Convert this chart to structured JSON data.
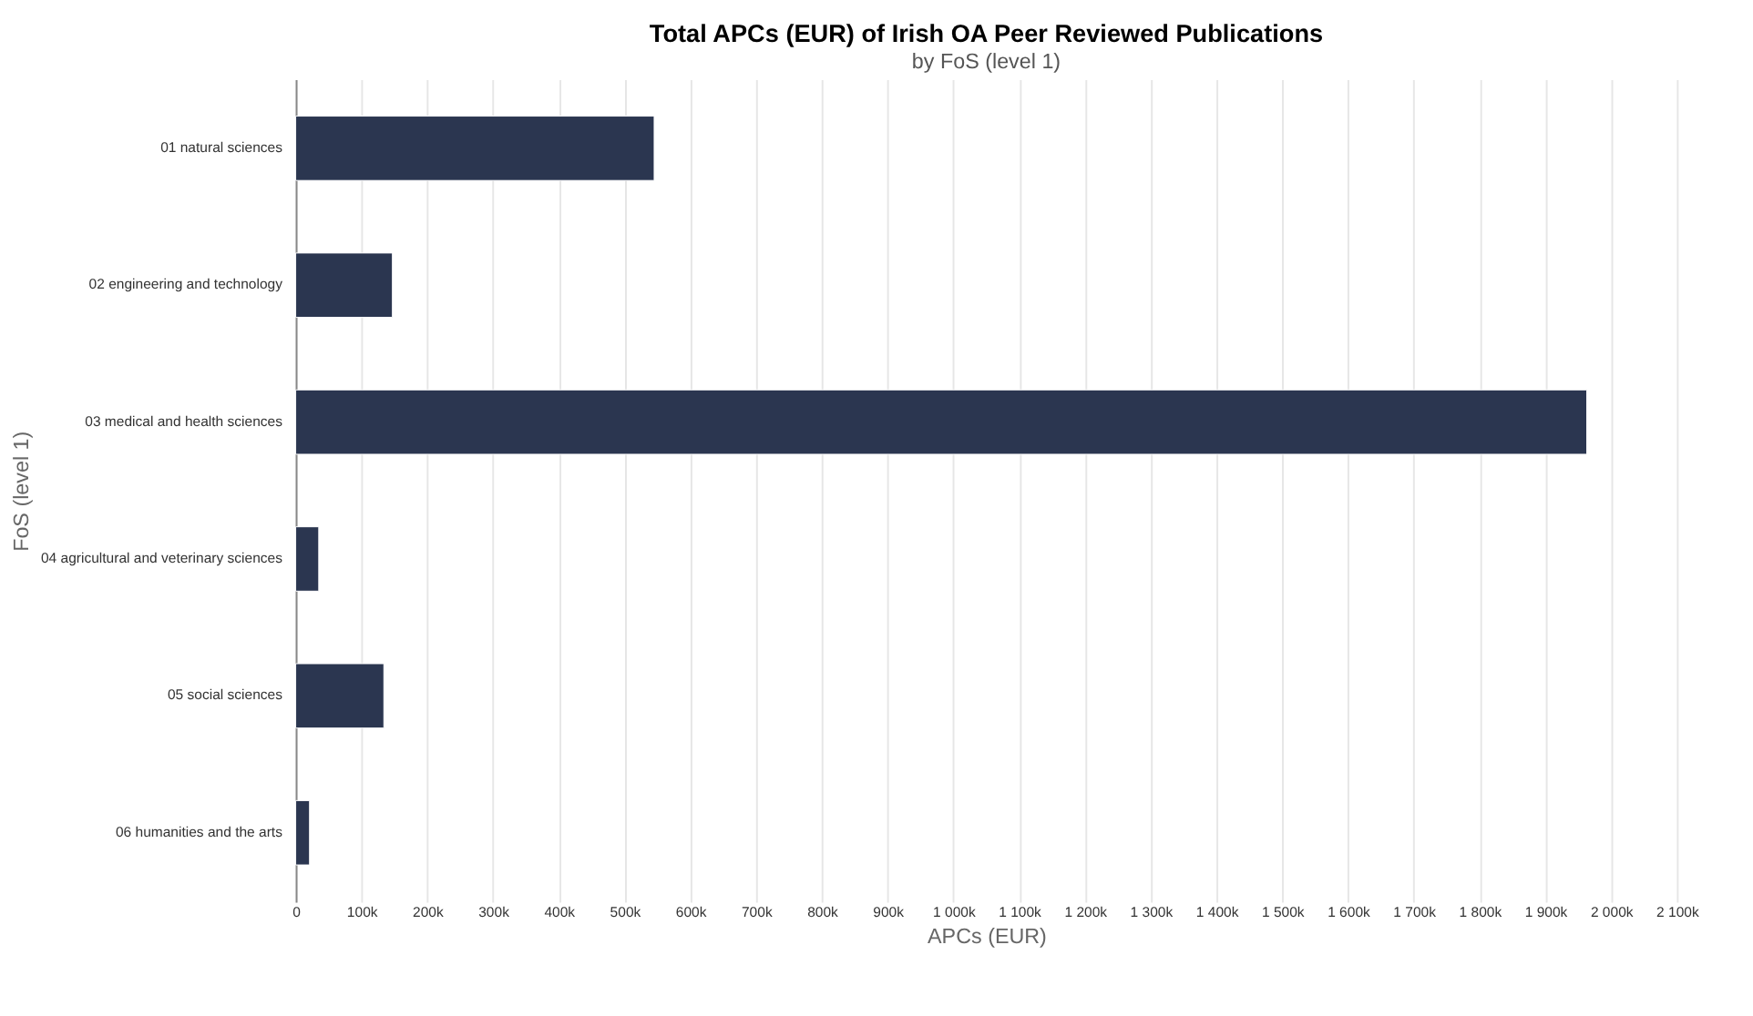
{
  "chart_data": {
    "type": "bar",
    "orientation": "horizontal",
    "title": "Total APCs (EUR) of Irish OA Peer Reviewed Publications",
    "subtitle": "by FoS (level 1)",
    "xlabel": "APCs (EUR)",
    "ylabel": "FoS (level 1)",
    "categories": [
      "01 natural sciences",
      "02 engineering and technology",
      "03 medical and health sciences",
      "04 agricultural and veterinary sciences",
      "05 social sciences",
      "06 humanities and the arts"
    ],
    "values": [
      545000,
      147000,
      1963000,
      35000,
      134000,
      21000
    ],
    "color": "#2b3650",
    "xlim": [
      0,
      2100000
    ],
    "xticks": [
      0,
      {
        "value": 100000,
        "label": "100k"
      },
      {
        "value": 200000,
        "label": "200k"
      },
      {
        "value": 300000,
        "label": "300k"
      },
      {
        "value": 400000,
        "label": "400k"
      },
      {
        "value": 500000,
        "label": "500k"
      },
      {
        "value": 600000,
        "label": "600k"
      },
      {
        "value": 700000,
        "label": "700k"
      },
      {
        "value": 800000,
        "label": "800k"
      },
      {
        "value": 900000,
        "label": "900k"
      },
      {
        "value": 1000000,
        "label": "1 000k"
      },
      {
        "value": 1100000,
        "label": "1 100k"
      },
      {
        "value": 1200000,
        "label": "1 200k"
      },
      {
        "value": 1300000,
        "label": "1 300k"
      },
      {
        "value": 1400000,
        "label": "1 400k"
      },
      {
        "value": 1500000,
        "label": "1 500k"
      },
      {
        "value": 1600000,
        "label": "1 600k"
      },
      {
        "value": 1700000,
        "label": "1 700k"
      },
      {
        "value": 1800000,
        "label": "1 800k"
      },
      {
        "value": 1900000,
        "label": "1 900k"
      },
      {
        "value": 2000000,
        "label": "2 000k"
      },
      {
        "value": 2100000,
        "label": "2 100k"
      }
    ],
    "grid": "x"
  }
}
